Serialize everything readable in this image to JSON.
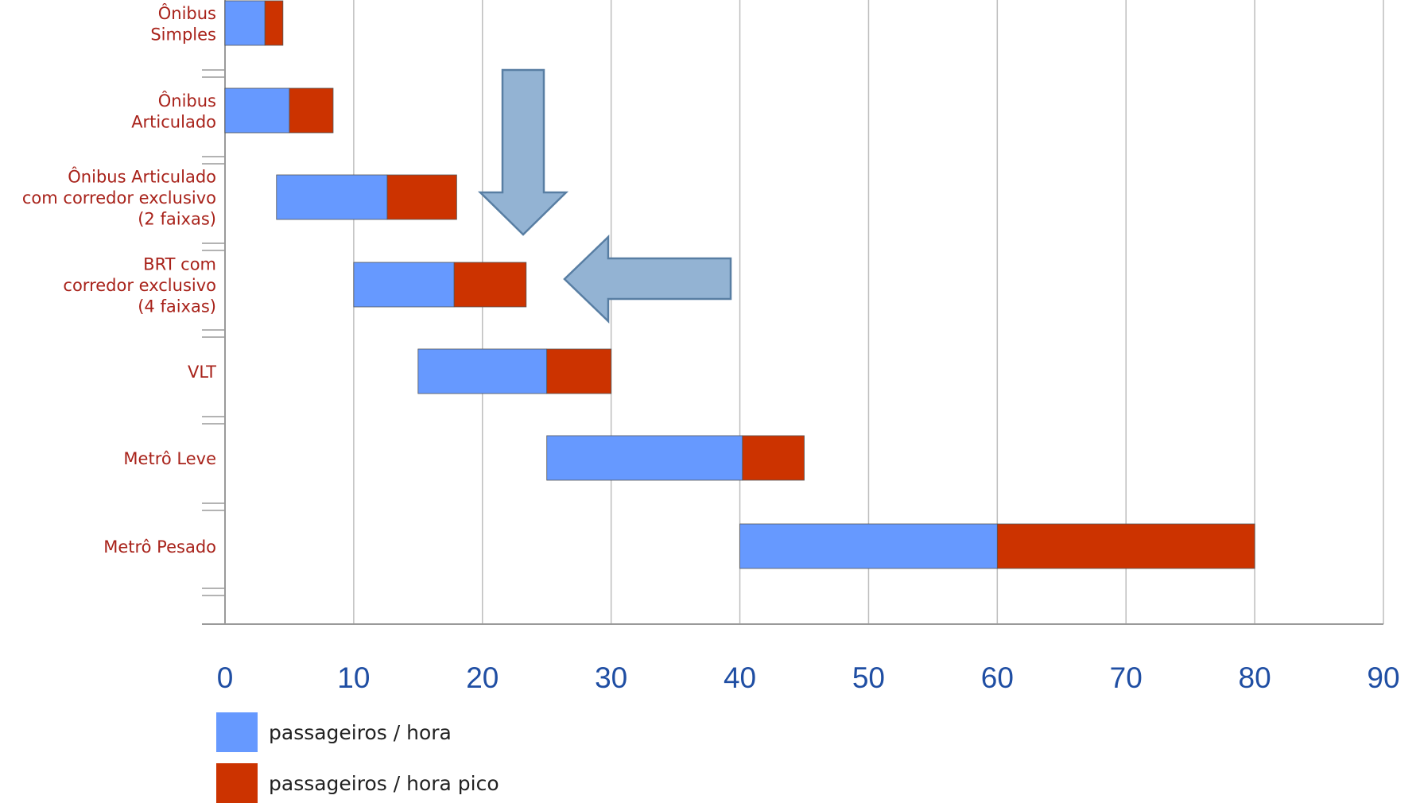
{
  "chart_data": {
    "type": "bar",
    "orientation": "horizontal",
    "stacked": true,
    "unit_scale": "x1000",
    "categories": [
      [
        "Ônibus",
        "Simples"
      ],
      [
        "Ônibus",
        "Articulado"
      ],
      [
        "Ônibus Articulado",
        "com corredor exclusivo",
        "(2 faixas)"
      ],
      [
        "BRT com",
        "corredor exclusivo",
        "(4 faixas)"
      ],
      [
        "VLT"
      ],
      [
        "Metrô Leve"
      ],
      [
        "Metrô Pesado"
      ]
    ],
    "series": [
      {
        "name": "passageiros / hora",
        "color": "#6699ff",
        "ranges": [
          [
            0,
            3.1
          ],
          [
            0,
            5
          ],
          [
            4,
            12.6
          ],
          [
            10,
            17.8
          ],
          [
            15,
            25
          ],
          [
            25,
            40.2
          ],
          [
            40,
            60
          ]
        ]
      },
      {
        "name": "passageiros / hora pico",
        "color": "#cc3300",
        "ranges": [
          [
            3.1,
            4.5
          ],
          [
            5,
            8.4
          ],
          [
            12.6,
            18
          ],
          [
            17.8,
            23.4
          ],
          [
            25,
            30
          ],
          [
            40.2,
            45
          ],
          [
            60,
            80
          ]
        ]
      }
    ],
    "xlim": [
      0,
      90
    ],
    "xticks": [
      "0",
      "10",
      "20",
      "30",
      "40",
      "50",
      "60",
      "70",
      "80",
      "90"
    ],
    "grid": true,
    "legend_position": "bottom-left",
    "annotations": [
      {
        "type": "arrow",
        "direction": "down",
        "color": "#93b3d3",
        "points_to": "Ônibus Articulado com corredor exclusivo (2 faixas)"
      },
      {
        "type": "arrow",
        "direction": "left",
        "color": "#93b3d3",
        "points_to": "BRT com corredor exclusivo (4 faixas)"
      }
    ],
    "colors": {
      "category_text": "#a8221a",
      "tick_text": "#1f4ea3",
      "grid": "#bdbdbd",
      "axis": "#9a9a9a"
    }
  }
}
